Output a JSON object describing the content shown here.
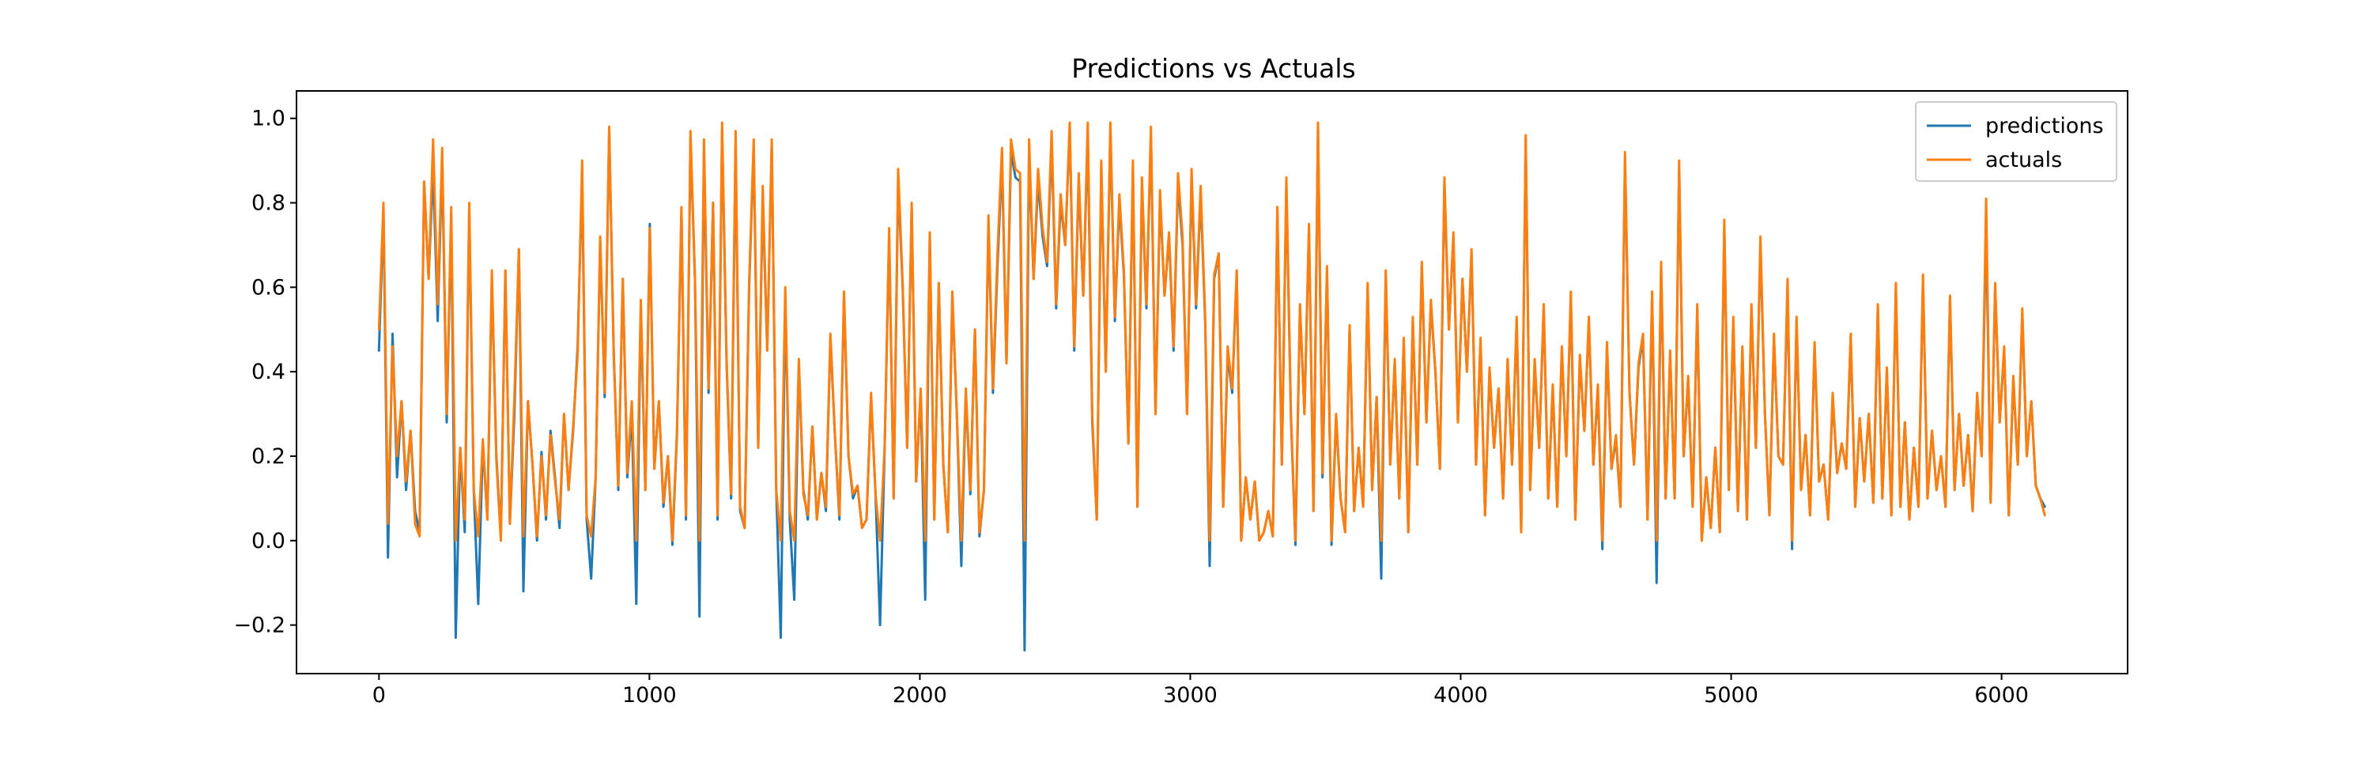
{
  "chart_data": {
    "type": "line",
    "title": "Predictions vs Actuals",
    "xlabel": "",
    "ylabel": "",
    "xlim": [
      -305,
      6466
    ],
    "ylim": [
      -0.315,
      1.065
    ],
    "xticks": [
      0,
      1000,
      2000,
      3000,
      4000,
      5000,
      6000
    ],
    "yticks": [
      -0.2,
      0.0,
      0.2,
      0.4,
      0.6,
      0.8,
      1.0
    ],
    "xtick_labels": [
      "0",
      "1000",
      "2000",
      "3000",
      "4000",
      "5000",
      "6000"
    ],
    "ytick_labels": [
      "−0.2",
      "0.0",
      "0.2",
      "0.4",
      "0.6",
      "0.8",
      "1.0"
    ],
    "grid": false,
    "legend_position": "upper right",
    "n_points": 6161,
    "x_range": [
      0,
      6160
    ],
    "series": [
      {
        "name": "predictions",
        "color": "#1f77b4",
        "values": [
          0.45,
          0.78,
          -0.04,
          0.49,
          0.15,
          0.33,
          0.12,
          0.26,
          0.07,
          0.02,
          0.85,
          0.62,
          0.88,
          0.52,
          0.9,
          0.28,
          0.77,
          -0.23,
          0.22,
          0.02,
          0.78,
          0.12,
          -0.15,
          0.23,
          0.05,
          0.62,
          0.2,
          0.01,
          0.64,
          0.04,
          0.3,
          0.69,
          -0.12,
          0.33,
          0.18,
          0.0,
          0.21,
          0.05,
          0.26,
          0.15,
          0.03,
          0.3,
          0.12,
          0.26,
          0.46,
          0.86,
          0.05,
          -0.09,
          0.15,
          0.71,
          0.34,
          0.97,
          0.45,
          0.12,
          0.62,
          0.15,
          0.3,
          -0.15,
          0.55,
          0.12,
          0.75,
          0.17,
          0.33,
          0.08,
          0.2,
          -0.01,
          0.25,
          0.78,
          0.05,
          0.95,
          0.62,
          -0.18,
          0.92,
          0.35,
          0.8,
          0.05,
          0.97,
          0.42,
          0.1,
          0.94,
          0.07,
          0.03,
          0.6,
          0.93,
          0.22,
          0.81,
          0.45,
          0.94,
          0.12,
          -0.23,
          0.58,
          0.05,
          -0.14,
          0.42,
          0.12,
          0.05,
          0.27,
          0.05,
          0.16,
          0.07,
          0.48,
          0.25,
          0.05,
          0.58,
          0.2,
          0.1,
          0.13,
          0.03,
          0.05,
          0.34,
          0.11,
          -0.2,
          0.22,
          0.72,
          0.1,
          0.85,
          0.6,
          0.22,
          0.79,
          0.14,
          0.35,
          -0.14,
          0.72,
          0.05,
          0.61,
          0.18,
          0.02,
          0.58,
          0.3,
          -0.06,
          0.35,
          0.11,
          0.5,
          0.01,
          0.12,
          0.75,
          0.35,
          0.65,
          0.9,
          0.42,
          0.92,
          0.86,
          0.85,
          -0.26,
          0.92,
          0.62,
          0.85,
          0.72,
          0.65,
          0.94,
          0.55,
          0.8,
          0.7,
          0.98,
          0.45,
          0.85,
          0.58,
          0.96,
          0.28,
          0.05,
          0.88,
          0.4,
          0.97,
          0.52,
          0.8,
          0.63,
          0.23,
          0.88,
          0.08,
          0.84,
          0.55,
          0.96,
          0.3,
          0.81,
          0.58,
          0.72,
          0.45,
          0.85,
          0.7,
          0.3,
          0.86,
          0.55,
          0.82,
          0.52,
          -0.06,
          0.62,
          0.68,
          0.08,
          0.44,
          0.35,
          0.63,
          0.0,
          0.15,
          0.05,
          0.14,
          0.0,
          0.02,
          0.07,
          0.01,
          0.78,
          0.18,
          0.84,
          0.29,
          -0.01,
          0.55,
          0.3,
          0.74,
          0.07,
          0.98,
          0.15,
          0.64,
          -0.01,
          0.29,
          0.1,
          0.02,
          0.5,
          0.07,
          0.22,
          0.08,
          0.6,
          0.12,
          0.34,
          -0.09,
          0.63,
          0.18,
          0.42,
          0.1,
          0.47,
          0.02,
          0.52,
          0.18,
          0.65,
          0.28,
          0.56,
          0.4,
          0.17,
          0.84,
          0.5,
          0.72,
          0.28,
          0.62,
          0.4,
          0.68,
          0.18,
          0.47,
          0.06,
          0.4,
          0.22,
          0.36,
          0.1,
          0.42,
          0.18,
          0.52,
          0.02,
          0.95,
          0.12,
          0.42,
          0.22,
          0.55,
          0.1,
          0.36,
          0.08,
          0.45,
          0.2,
          0.58,
          0.05,
          0.43,
          0.26,
          0.52,
          0.18,
          0.36,
          -0.02,
          0.46,
          0.17,
          0.24,
          0.08,
          0.9,
          0.35,
          0.18,
          0.41,
          0.48,
          0.05,
          0.58,
          -0.1,
          0.65,
          0.1,
          0.44,
          0.1,
          0.88,
          0.2,
          0.38,
          0.08,
          0.55,
          0.0,
          0.15,
          0.03,
          0.22,
          0.02,
          0.74,
          0.12,
          0.52,
          0.07,
          0.45,
          0.05,
          0.55,
          0.22,
          0.7,
          0.3,
          0.06,
          0.48,
          0.2,
          0.18,
          0.6,
          -0.02,
          0.52,
          0.12,
          0.25,
          0.06,
          0.46,
          0.14,
          0.18,
          0.05,
          0.34,
          0.16,
          0.23,
          0.17,
          0.48,
          0.08,
          0.29,
          0.14,
          0.3,
          0.09,
          0.55,
          0.1,
          0.4,
          0.06,
          0.6,
          0.08,
          0.28,
          0.05,
          0.22,
          0.08,
          0.62,
          0.1,
          0.26,
          0.12,
          0.2,
          0.08,
          0.57,
          0.12,
          0.3,
          0.13,
          0.25,
          0.07,
          0.34,
          0.2,
          0.75,
          0.09,
          0.6,
          0.28,
          0.45,
          0.06,
          0.38,
          0.18,
          0.54,
          0.2,
          0.33,
          0.13,
          0.1,
          0.08
        ]
      },
      {
        "name": "actuals",
        "color": "#ff7f0e",
        "values": [
          0.5,
          0.8,
          0.04,
          0.46,
          0.2,
          0.33,
          0.14,
          0.26,
          0.04,
          0.01,
          0.85,
          0.62,
          0.95,
          0.56,
          0.93,
          0.3,
          0.79,
          0.0,
          0.22,
          0.05,
          0.8,
          0.12,
          0.01,
          0.24,
          0.05,
          0.64,
          0.19,
          0.0,
          0.64,
          0.04,
          0.34,
          0.69,
          0.01,
          0.33,
          0.18,
          0.01,
          0.2,
          0.06,
          0.25,
          0.14,
          0.05,
          0.3,
          0.12,
          0.27,
          0.44,
          0.9,
          0.06,
          0.01,
          0.15,
          0.72,
          0.35,
          0.98,
          0.44,
          0.13,
          0.62,
          0.16,
          0.33,
          0.0,
          0.57,
          0.12,
          0.74,
          0.17,
          0.33,
          0.09,
          0.2,
          0.0,
          0.26,
          0.79,
          0.06,
          0.97,
          0.62,
          0.0,
          0.95,
          0.36,
          0.8,
          0.06,
          0.99,
          0.43,
          0.11,
          0.97,
          0.08,
          0.03,
          0.61,
          0.95,
          0.22,
          0.84,
          0.45,
          0.95,
          0.12,
          0.0,
          0.6,
          0.07,
          0.0,
          0.43,
          0.11,
          0.06,
          0.27,
          0.05,
          0.16,
          0.08,
          0.49,
          0.25,
          0.06,
          0.59,
          0.2,
          0.11,
          0.13,
          0.03,
          0.05,
          0.35,
          0.11,
          0.0,
          0.22,
          0.74,
          0.1,
          0.88,
          0.61,
          0.22,
          0.8,
          0.14,
          0.36,
          0.0,
          0.73,
          0.05,
          0.61,
          0.18,
          0.02,
          0.59,
          0.3,
          0.0,
          0.36,
          0.12,
          0.5,
          0.02,
          0.12,
          0.77,
          0.36,
          0.68,
          0.93,
          0.42,
          0.95,
          0.88,
          0.87,
          0.0,
          0.95,
          0.62,
          0.88,
          0.74,
          0.66,
          0.97,
          0.56,
          0.82,
          0.7,
          0.99,
          0.46,
          0.87,
          0.58,
          0.99,
          0.3,
          0.05,
          0.9,
          0.4,
          0.99,
          0.53,
          0.82,
          0.64,
          0.23,
          0.9,
          0.08,
          0.86,
          0.56,
          0.98,
          0.3,
          0.83,
          0.58,
          0.73,
          0.46,
          0.87,
          0.72,
          0.3,
          0.88,
          0.56,
          0.84,
          0.53,
          0.0,
          0.63,
          0.68,
          0.08,
          0.46,
          0.36,
          0.64,
          0.0,
          0.15,
          0.05,
          0.14,
          0.0,
          0.02,
          0.07,
          0.01,
          0.79,
          0.18,
          0.86,
          0.3,
          0.0,
          0.56,
          0.3,
          0.75,
          0.07,
          0.99,
          0.16,
          0.65,
          0.0,
          0.3,
          0.1,
          0.02,
          0.51,
          0.07,
          0.22,
          0.08,
          0.61,
          0.12,
          0.34,
          0.0,
          0.64,
          0.18,
          0.43,
          0.1,
          0.48,
          0.02,
          0.53,
          0.18,
          0.66,
          0.28,
          0.57,
          0.4,
          0.17,
          0.86,
          0.5,
          0.73,
          0.28,
          0.62,
          0.4,
          0.69,
          0.18,
          0.48,
          0.06,
          0.41,
          0.22,
          0.36,
          0.1,
          0.43,
          0.18,
          0.53,
          0.02,
          0.96,
          0.12,
          0.43,
          0.22,
          0.56,
          0.1,
          0.37,
          0.08,
          0.46,
          0.2,
          0.59,
          0.05,
          0.44,
          0.26,
          0.53,
          0.18,
          0.37,
          0.0,
          0.47,
          0.17,
          0.25,
          0.08,
          0.92,
          0.35,
          0.18,
          0.42,
          0.49,
          0.05,
          0.59,
          0.0,
          0.66,
          0.1,
          0.45,
          0.1,
          0.9,
          0.2,
          0.39,
          0.08,
          0.56,
          0.0,
          0.15,
          0.03,
          0.22,
          0.02,
          0.76,
          0.12,
          0.53,
          0.07,
          0.46,
          0.05,
          0.56,
          0.22,
          0.72,
          0.3,
          0.06,
          0.49,
          0.2,
          0.18,
          0.62,
          0.0,
          0.53,
          0.12,
          0.25,
          0.06,
          0.47,
          0.14,
          0.18,
          0.05,
          0.35,
          0.16,
          0.23,
          0.17,
          0.49,
          0.08,
          0.29,
          0.14,
          0.3,
          0.09,
          0.56,
          0.1,
          0.41,
          0.06,
          0.61,
          0.08,
          0.28,
          0.05,
          0.22,
          0.08,
          0.63,
          0.1,
          0.26,
          0.12,
          0.2,
          0.08,
          0.58,
          0.12,
          0.3,
          0.13,
          0.25,
          0.07,
          0.35,
          0.2,
          0.81,
          0.09,
          0.61,
          0.28,
          0.46,
          0.06,
          0.39,
          0.18,
          0.55,
          0.2,
          0.33,
          0.13,
          0.1,
          0.06
        ]
      }
    ]
  }
}
